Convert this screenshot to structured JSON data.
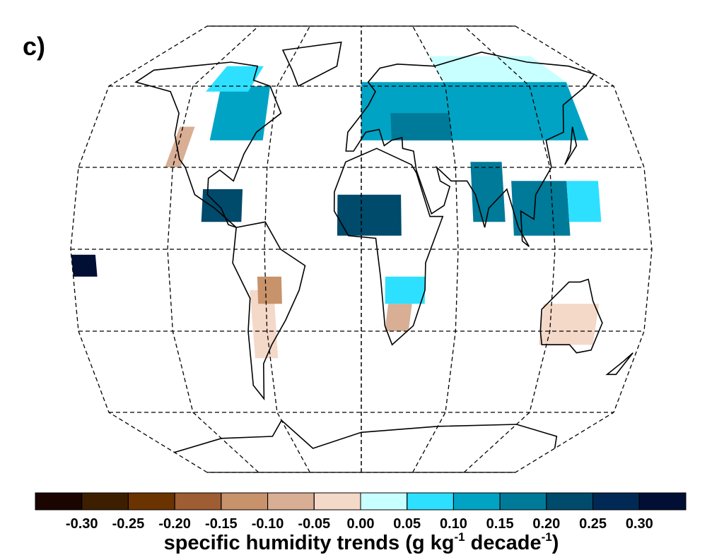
{
  "panel_label": "c)",
  "colorbar": {
    "colors": [
      "#1a0500",
      "#3d1f00",
      "#6b3300",
      "#9e5d33",
      "#c8926b",
      "#d8ae94",
      "#f4d8c8",
      "#c8ffff",
      "#2ee0ff",
      "#00a3c4",
      "#007a99",
      "#004a6b",
      "#002a55",
      "#000f33"
    ],
    "ticks": [
      {
        "value": -0.3,
        "label": "-0.30"
      },
      {
        "value": -0.25,
        "label": "-0.25"
      },
      {
        "value": -0.2,
        "label": "-0.20"
      },
      {
        "value": -0.15,
        "label": "-0.15"
      },
      {
        "value": -0.1,
        "label": "-0.10"
      },
      {
        "value": -0.05,
        "label": "-0.05"
      },
      {
        "value": 0,
        "label": "0.00"
      },
      {
        "value": 0.05,
        "label": "0.05"
      },
      {
        "value": 0.1,
        "label": "0.10"
      },
      {
        "value": 0.15,
        "label": "0.15"
      },
      {
        "value": 0.2,
        "label": "0.20"
      },
      {
        "value": 0.25,
        "label": "0.25"
      },
      {
        "value": 0.3,
        "label": "0.30"
      }
    ],
    "title": {
      "text": "specific humidity trends (g kg",
      "sup1": "-1",
      "mid": " decade",
      "sup2": "-1",
      "end": ")"
    }
  }
}
